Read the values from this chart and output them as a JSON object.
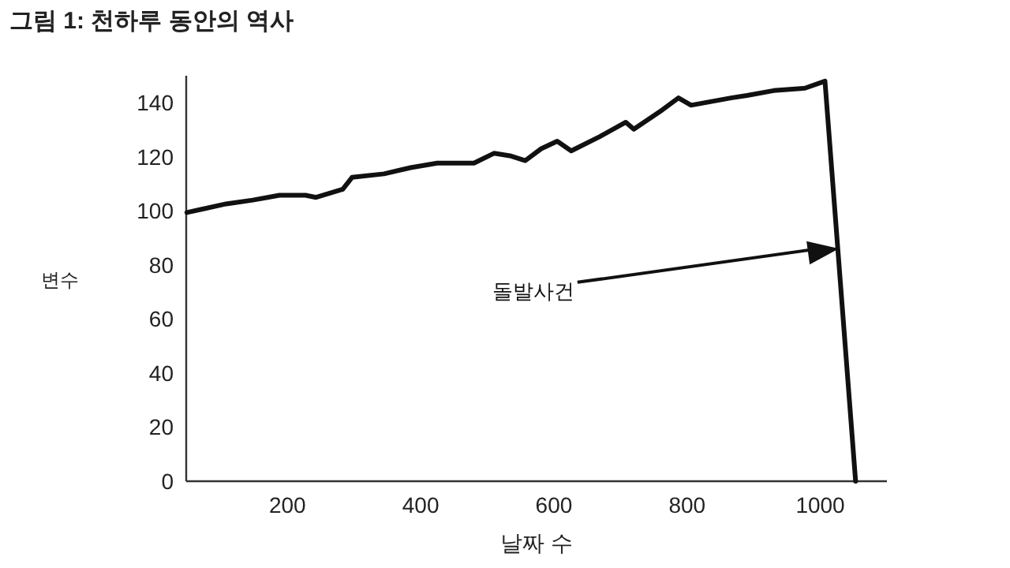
{
  "chart_data": {
    "type": "line",
    "title": "그림 1: 천하루 동안의 역사",
    "xlabel": "날짜 수",
    "ylabel": "변수",
    "x": [
      49,
      108,
      148,
      188,
      227,
      243,
      283,
      297,
      345,
      385,
      425,
      480,
      510,
      534,
      557,
      581,
      605,
      626,
      669,
      708,
      720,
      763,
      787,
      806,
      866,
      890,
      930,
      977,
      1007,
      1053
    ],
    "values": [
      99.4,
      102.6,
      104,
      105.8,
      105.8,
      105,
      108,
      112.4,
      113.7,
      116,
      117.7,
      117.7,
      121.3,
      120.4,
      118.6,
      123,
      125.8,
      122.2,
      127.5,
      132.8,
      130.2,
      137.4,
      141.8,
      139.1,
      141.8,
      142.7,
      144.5,
      145.4,
      148,
      0
    ],
    "color": "#111111",
    "xlim": [
      48,
      1100
    ],
    "ylim": [
      0,
      150
    ],
    "xticks": [
      200,
      400,
      600,
      800,
      1000
    ],
    "yticks": [
      0,
      20,
      40,
      60,
      80,
      100,
      120,
      140
    ],
    "grid": false,
    "marker": "none",
    "line_style": "solid",
    "annotations": [
      "돌발사건"
    ]
  }
}
